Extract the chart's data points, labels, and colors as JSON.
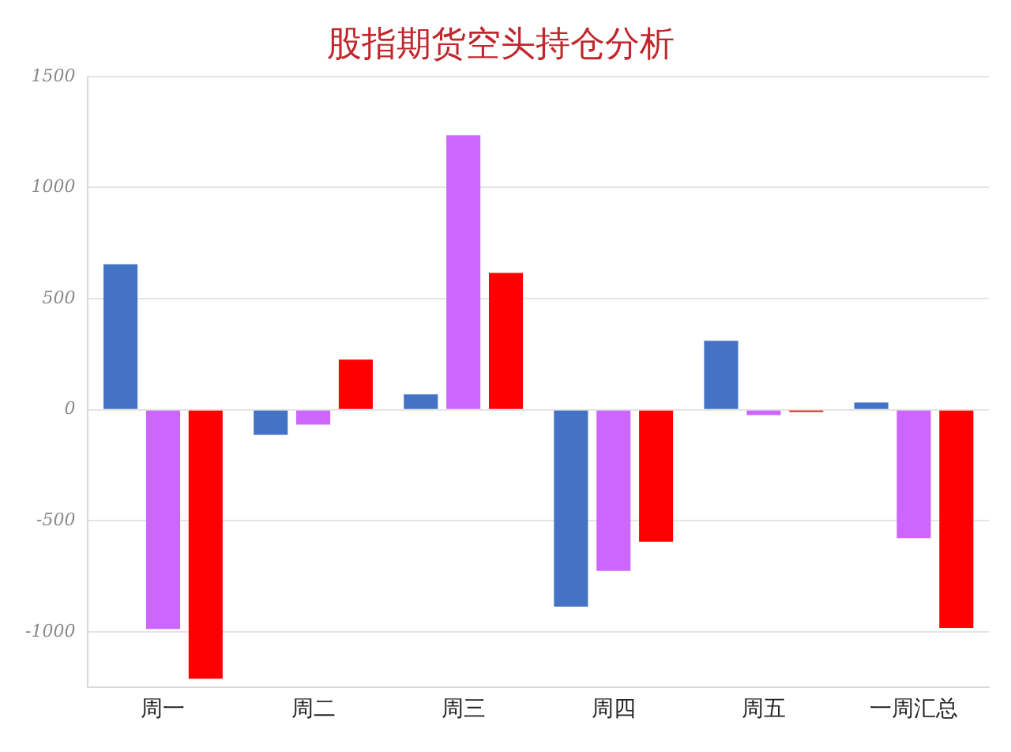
{
  "chart_data": {
    "type": "bar",
    "title": "股指期货空头持仓分析",
    "categories": [
      "周一",
      "周二",
      "周三",
      "周四",
      "周五",
      "一周汇总"
    ],
    "series": [
      {
        "color": "#4472c4",
        "values": [
          655,
          -113,
          69,
          -886,
          310,
          33
        ]
      },
      {
        "color": "#cc66ff",
        "values": [
          -986,
          -67,
          1235,
          -725,
          -24,
          -578
        ]
      },
      {
        "color": "#ff0000",
        "values": [
          -1210,
          226,
          616,
          -594,
          -10,
          -982
        ]
      }
    ],
    "ylim": [
      -1250,
      1500
    ],
    "yticks": [
      -1000,
      -500,
      0,
      500,
      1000,
      1500
    ],
    "grid": "y",
    "legend": false
  }
}
